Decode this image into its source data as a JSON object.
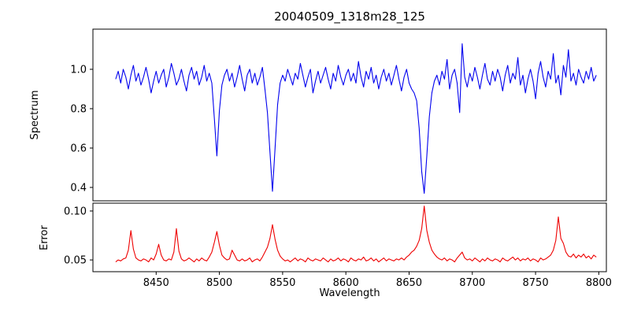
{
  "chart_data": {
    "type": "line",
    "title": "20040509_1318m28_125",
    "xlabel": "Wavelength",
    "background": "#ffffff",
    "axis_color": "#000000",
    "grid": false,
    "legend": "none",
    "xlim": [
      8400,
      8806
    ],
    "xticks": [
      8450,
      8500,
      8550,
      8600,
      8650,
      8700,
      8750,
      8800
    ],
    "xtick_labels": [
      "8450",
      "8500",
      "8550",
      "8600",
      "8650",
      "8700",
      "8750",
      "8800"
    ],
    "x_start": 8418,
    "x_step": 2,
    "absorption_line_centers": [
      8498,
      8542,
      8662
    ],
    "error_peak_centers": [
      8430,
      8466,
      8498,
      8542,
      8662,
      8768
    ],
    "panels": [
      {
        "name": "spectrum",
        "ylabel": "Spectrum",
        "color": "#0000ee",
        "ylim": [
          0.332,
          1.204
        ],
        "yticks": [
          0.4,
          0.6,
          0.8,
          1.0
        ],
        "ytick_labels": [
          "0.4",
          "0.6",
          "0.8",
          "1.0"
        ]
      },
      {
        "name": "error",
        "ylabel": "Error",
        "color": "#ee0000",
        "ylim": [
          0.038,
          0.108
        ],
        "yticks": [
          0.05,
          0.1
        ],
        "ytick_labels": [
          "0.05",
          "0.10"
        ]
      }
    ],
    "series": [
      {
        "name": "spectrum",
        "values": [
          0.95,
          0.99,
          0.93,
          1.0,
          0.96,
          0.9,
          0.97,
          1.02,
          0.94,
          0.98,
          0.92,
          0.96,
          1.01,
          0.95,
          0.88,
          0.94,
          0.99,
          0.93,
          0.97,
          1.0,
          0.91,
          0.96,
          1.03,
          0.98,
          0.92,
          0.95,
          1.0,
          0.94,
          0.89,
          0.97,
          1.01,
          0.95,
          0.99,
          0.92,
          0.96,
          1.02,
          0.94,
          0.98,
          0.93,
          0.75,
          0.56,
          0.79,
          0.92,
          0.97,
          1.0,
          0.94,
          0.98,
          0.91,
          0.96,
          1.02,
          0.95,
          0.89,
          0.97,
          1.0,
          0.93,
          0.98,
          0.92,
          0.96,
          1.01,
          0.9,
          0.78,
          0.58,
          0.38,
          0.6,
          0.82,
          0.93,
          0.97,
          0.94,
          1.0,
          0.96,
          0.92,
          0.98,
          0.95,
          1.03,
          0.97,
          0.91,
          0.96,
          1.0,
          0.88,
          0.94,
          0.99,
          0.93,
          0.97,
          1.01,
          0.95,
          0.9,
          0.98,
          0.94,
          1.02,
          0.96,
          0.92,
          0.97,
          1.0,
          0.94,
          0.98,
          0.93,
          1.04,
          0.96,
          0.91,
          0.99,
          0.95,
          1.01,
          0.93,
          0.97,
          0.9,
          0.96,
          1.0,
          0.94,
          0.98,
          0.92,
          0.97,
          1.02,
          0.95,
          0.89,
          0.96,
          1.0,
          0.93,
          0.9,
          0.88,
          0.84,
          0.7,
          0.48,
          0.37,
          0.56,
          0.76,
          0.88,
          0.94,
          0.97,
          0.92,
          0.99,
          0.95,
          1.05,
          0.9,
          0.97,
          1.0,
          0.93,
          0.78,
          1.13,
          0.96,
          0.91,
          0.98,
          0.94,
          1.01,
          0.96,
          0.9,
          0.97,
          1.03,
          0.95,
          0.92,
          0.99,
          0.94,
          1.0,
          0.96,
          0.89,
          0.97,
          1.02,
          0.93,
          0.98,
          0.95,
          1.06,
          0.92,
          0.97,
          0.88,
          0.95,
          1.0,
          0.94,
          0.85,
          0.98,
          1.04,
          0.96,
          0.91,
          0.99,
          0.95,
          1.08,
          0.93,
          0.97,
          0.87,
          1.02,
          0.96,
          1.1,
          0.94,
          0.98,
          0.92,
          1.0,
          0.96,
          0.93,
          0.99,
          0.95,
          1.01,
          0.94,
          0.97
        ]
      },
      {
        "name": "error",
        "values": [
          0.048,
          0.05,
          0.049,
          0.051,
          0.052,
          0.06,
          0.08,
          0.061,
          0.052,
          0.05,
          0.049,
          0.051,
          0.05,
          0.048,
          0.052,
          0.05,
          0.056,
          0.066,
          0.055,
          0.05,
          0.049,
          0.051,
          0.05,
          0.058,
          0.082,
          0.059,
          0.051,
          0.049,
          0.05,
          0.052,
          0.05,
          0.048,
          0.051,
          0.049,
          0.052,
          0.05,
          0.049,
          0.053,
          0.058,
          0.068,
          0.079,
          0.065,
          0.055,
          0.052,
          0.05,
          0.051,
          0.06,
          0.055,
          0.05,
          0.049,
          0.051,
          0.049,
          0.05,
          0.052,
          0.048,
          0.05,
          0.051,
          0.049,
          0.053,
          0.058,
          0.063,
          0.072,
          0.086,
          0.071,
          0.06,
          0.054,
          0.051,
          0.049,
          0.05,
          0.048,
          0.05,
          0.052,
          0.049,
          0.051,
          0.05,
          0.048,
          0.052,
          0.05,
          0.049,
          0.051,
          0.05,
          0.049,
          0.052,
          0.05,
          0.048,
          0.051,
          0.049,
          0.05,
          0.052,
          0.049,
          0.051,
          0.05,
          0.048,
          0.052,
          0.05,
          0.049,
          0.051,
          0.05,
          0.053,
          0.049,
          0.05,
          0.052,
          0.049,
          0.051,
          0.048,
          0.05,
          0.052,
          0.049,
          0.051,
          0.05,
          0.049,
          0.051,
          0.05,
          0.052,
          0.05,
          0.053,
          0.055,
          0.058,
          0.06,
          0.064,
          0.07,
          0.082,
          0.105,
          0.08,
          0.068,
          0.06,
          0.056,
          0.053,
          0.051,
          0.05,
          0.052,
          0.049,
          0.051,
          0.05,
          0.048,
          0.052,
          0.055,
          0.058,
          0.052,
          0.05,
          0.051,
          0.049,
          0.052,
          0.05,
          0.048,
          0.051,
          0.049,
          0.052,
          0.05,
          0.049,
          0.051,
          0.05,
          0.048,
          0.052,
          0.05,
          0.049,
          0.051,
          0.053,
          0.05,
          0.052,
          0.049,
          0.051,
          0.05,
          0.052,
          0.049,
          0.051,
          0.05,
          0.048,
          0.052,
          0.05,
          0.051,
          0.053,
          0.055,
          0.06,
          0.07,
          0.094,
          0.072,
          0.067,
          0.058,
          0.054,
          0.053,
          0.056,
          0.052,
          0.055,
          0.053,
          0.056,
          0.052,
          0.054,
          0.051,
          0.055,
          0.053
        ]
      }
    ]
  }
}
